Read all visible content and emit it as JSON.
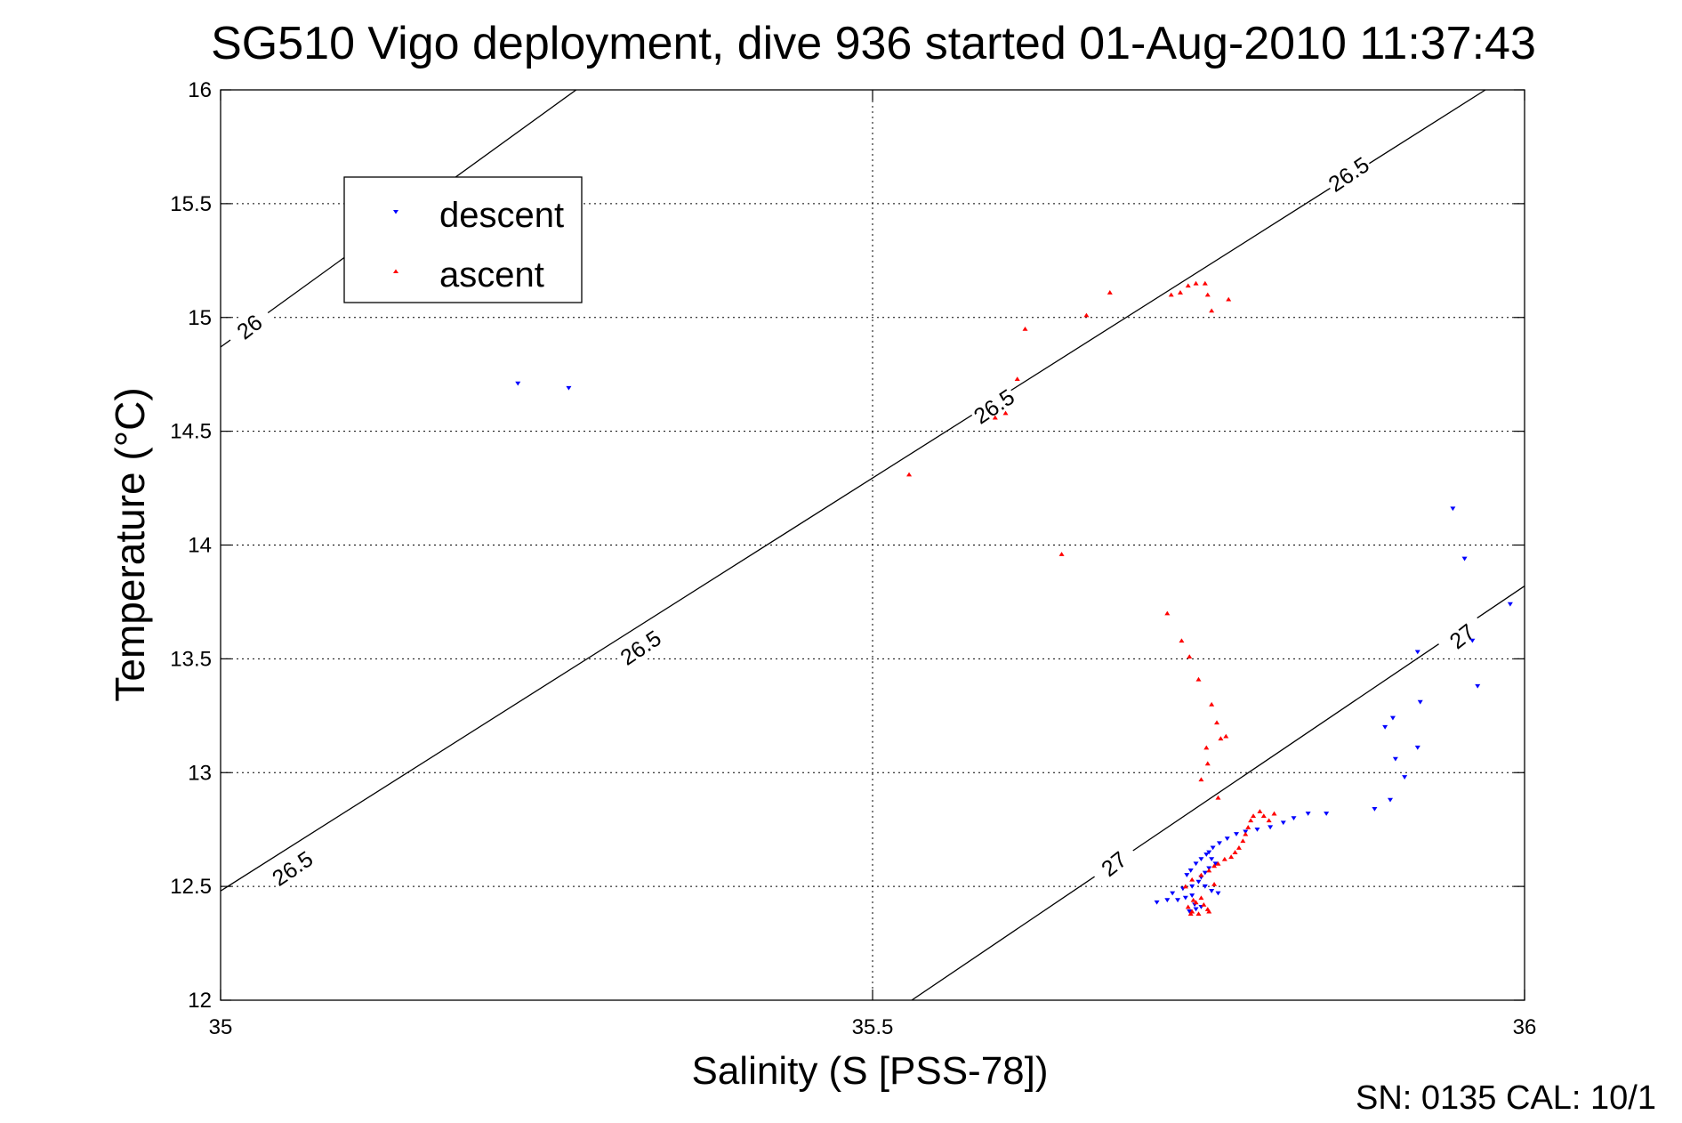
{
  "chart_data": {
    "type": "scatter",
    "title": "SG510 Vigo deployment, dive 936 started 01-Aug-2010 11:37:43",
    "xlabel": "Salinity (S [PSS-78])",
    "ylabel": "Temperature (°C)",
    "footer": "SN: 0135  CAL: 10/1",
    "xlim": [
      35,
      36
    ],
    "ylim": [
      12,
      16
    ],
    "xticks": [
      35,
      35.5,
      36
    ],
    "xtick_labels": [
      "35",
      "35.5",
      "36"
    ],
    "yticks": [
      12,
      12.5,
      13,
      13.5,
      14,
      14.5,
      15,
      15.5,
      16
    ],
    "ytick_labels": [
      "12",
      "12.5",
      "13",
      "13.5",
      "14",
      "14.5",
      "15",
      "15.5",
      "16"
    ],
    "grid": true,
    "legend_position": "top-left",
    "contours": [
      {
        "level": "26",
        "points": [
          [
            35.0,
            14.87
          ],
          [
            35.97,
            18.89
          ]
        ],
        "labels": [
          {
            "text": "26",
            "x": 35.022,
            "y": 14.96,
            "angle": -38
          },
          {
            "text": "26",
            "x": 35.298,
            "y": 16.06,
            "angle": -38
          }
        ]
      },
      {
        "level": "26.5",
        "points": [
          [
            35.0,
            12.48
          ],
          [
            35.97,
            16.0
          ]
        ],
        "labels": [
          {
            "text": "26.5",
            "x": 35.055,
            "y": 12.58,
            "angle": -34
          },
          {
            "text": "26.5",
            "x": 35.322,
            "y": 13.55,
            "angle": -34
          },
          {
            "text": "26.5",
            "x": 35.593,
            "y": 14.61,
            "angle": -34
          },
          {
            "text": "26.5",
            "x": 35.865,
            "y": 15.63,
            "angle": -34
          }
        ]
      },
      {
        "level": "27",
        "points": [
          [
            35.53,
            12.0
          ],
          [
            36.0,
            13.82
          ]
        ],
        "labels": [
          {
            "text": "27",
            "x": 35.685,
            "y": 12.6,
            "angle": -38
          },
          {
            "text": "27",
            "x": 35.952,
            "y": 13.6,
            "angle": -38
          }
        ]
      }
    ],
    "series": [
      {
        "name": "descent",
        "color": "#0000ff",
        "marker": "triangle-down",
        "points": [
          [
            35.228,
            14.71
          ],
          [
            35.267,
            14.69
          ],
          [
            35.945,
            14.16
          ],
          [
            35.954,
            13.94
          ],
          [
            35.989,
            13.74
          ],
          [
            35.96,
            13.58
          ],
          [
            35.964,
            13.38
          ],
          [
            35.918,
            13.53
          ],
          [
            35.92,
            13.31
          ],
          [
            35.899,
            13.24
          ],
          [
            35.893,
            13.2
          ],
          [
            35.901,
            13.06
          ],
          [
            35.918,
            13.11
          ],
          [
            35.908,
            12.98
          ],
          [
            35.897,
            12.88
          ],
          [
            35.885,
            12.84
          ],
          [
            35.848,
            12.82
          ],
          [
            35.834,
            12.82
          ],
          [
            35.823,
            12.8
          ],
          [
            35.815,
            12.78
          ],
          [
            35.805,
            12.76
          ],
          [
            35.795,
            12.75
          ],
          [
            35.786,
            12.74
          ],
          [
            35.779,
            12.73
          ],
          [
            35.772,
            12.71
          ],
          [
            35.766,
            12.69
          ],
          [
            35.761,
            12.67
          ],
          [
            35.758,
            12.65
          ],
          [
            35.76,
            12.62
          ],
          [
            35.763,
            12.6
          ],
          [
            35.758,
            12.58
          ],
          [
            35.755,
            12.56
          ],
          [
            35.752,
            12.54
          ],
          [
            35.75,
            12.52
          ],
          [
            35.755,
            12.5
          ],
          [
            35.76,
            12.48
          ],
          [
            35.765,
            12.47
          ],
          [
            35.745,
            12.46
          ],
          [
            35.74,
            12.45
          ],
          [
            35.734,
            12.44
          ],
          [
            35.726,
            12.44
          ],
          [
            35.718,
            12.43
          ],
          [
            35.745,
            12.5
          ],
          [
            35.738,
            12.49
          ],
          [
            35.73,
            12.47
          ],
          [
            35.748,
            12.6
          ],
          [
            35.752,
            12.62
          ],
          [
            35.744,
            12.57
          ],
          [
            35.741,
            12.55
          ],
          [
            35.756,
            12.64
          ],
          [
            35.743,
            12.39
          ],
          [
            35.748,
            12.4
          ],
          [
            35.752,
            12.41
          ],
          [
            35.747,
            12.42
          ]
        ]
      },
      {
        "name": "ascent",
        "color": "#ff0000",
        "marker": "triangle-up",
        "points": [
          [
            35.757,
            12.4
          ],
          [
            35.745,
            12.39
          ],
          [
            35.75,
            12.38
          ],
          [
            35.742,
            12.41
          ],
          [
            35.754,
            12.42
          ],
          [
            35.748,
            12.43
          ],
          [
            35.746,
            12.44
          ],
          [
            35.752,
            12.45
          ],
          [
            35.758,
            12.39
          ],
          [
            35.744,
            12.38
          ],
          [
            35.74,
            12.5
          ],
          [
            35.745,
            12.53
          ],
          [
            35.752,
            12.55
          ],
          [
            35.758,
            12.57
          ],
          [
            35.762,
            12.59
          ],
          [
            35.765,
            12.6
          ],
          [
            35.77,
            12.62
          ],
          [
            35.775,
            12.63
          ],
          [
            35.778,
            12.65
          ],
          [
            35.781,
            12.67
          ],
          [
            35.784,
            12.7
          ],
          [
            35.786,
            12.73
          ],
          [
            35.788,
            12.76
          ],
          [
            35.79,
            12.79
          ],
          [
            35.792,
            12.81
          ],
          [
            35.797,
            12.83
          ],
          [
            35.8,
            12.81
          ],
          [
            35.804,
            12.79
          ],
          [
            35.808,
            12.82
          ],
          [
            35.762,
            12.51
          ],
          [
            35.765,
            12.89
          ],
          [
            35.752,
            12.97
          ],
          [
            35.757,
            13.04
          ],
          [
            35.756,
            13.11
          ],
          [
            35.767,
            13.15
          ],
          [
            35.76,
            13.3
          ],
          [
            35.771,
            13.16
          ],
          [
            35.764,
            13.22
          ],
          [
            35.75,
            13.41
          ],
          [
            35.743,
            13.51
          ],
          [
            35.737,
            13.58
          ],
          [
            35.726,
            13.7
          ],
          [
            35.528,
            14.31
          ],
          [
            35.602,
            14.58
          ],
          [
            35.611,
            14.73
          ],
          [
            35.594,
            14.56
          ],
          [
            35.617,
            14.95
          ],
          [
            35.645,
            13.96
          ],
          [
            35.664,
            15.01
          ],
          [
            35.682,
            15.11
          ],
          [
            35.729,
            15.1
          ],
          [
            35.736,
            15.11
          ],
          [
            35.742,
            15.14
          ],
          [
            35.748,
            15.15
          ],
          [
            35.755,
            15.15
          ],
          [
            35.757,
            15.1
          ],
          [
            35.76,
            15.03
          ],
          [
            35.773,
            15.08
          ]
        ]
      }
    ]
  }
}
